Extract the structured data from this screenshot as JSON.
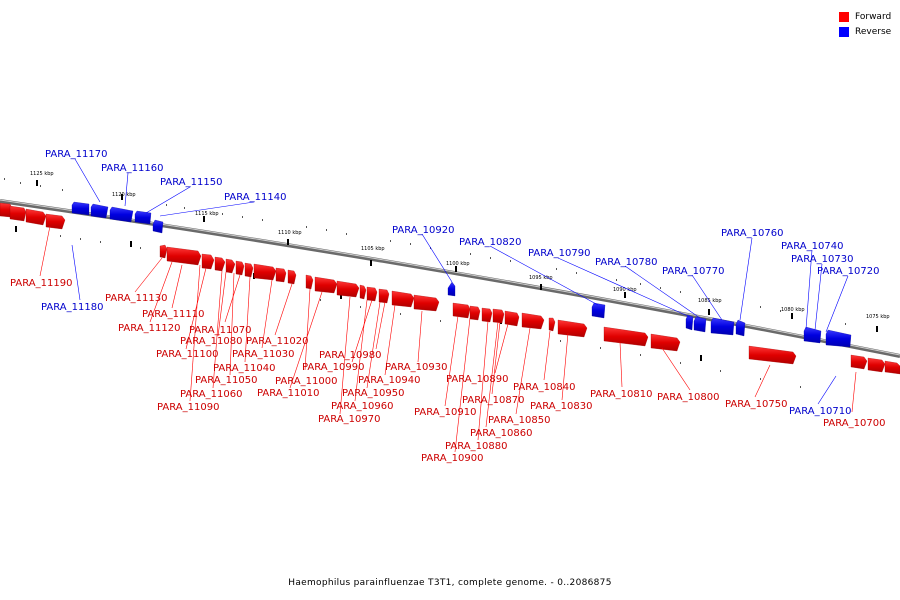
{
  "legend": {
    "forward_label": "Forward",
    "reverse_label": "Reverse",
    "forward_color": "#ff0000",
    "reverse_color": "#0000ff"
  },
  "caption": "Haemophilus parainfluenzae T3T1, complete genome. - 0..2086875",
  "ticks": [
    "1125 kbp",
    "1120 kbp",
    "1115 kbp",
    "1110 kbp",
    "1105 kbp",
    "1100 kbp",
    "1095 kbp",
    "1090 kbp",
    "1085 kbp",
    "1080 kbp",
    "1075 kbp"
  ],
  "genes_forward": [
    "PARA_11190",
    "PARA_11130",
    "PARA_11110",
    "PARA_11120",
    "PARA_11070",
    "PARA_11080",
    "PARA_11100",
    "PARA_11020",
    "PARA_11030",
    "PARA_11040",
    "PARA_11050",
    "PARA_11060",
    "PARA_11090",
    "PARA_11000",
    "PARA_11010",
    "PARA_10980",
    "PARA_10990",
    "PARA_10940",
    "PARA_10950",
    "PARA_10960",
    "PARA_10970",
    "PARA_10930",
    "PARA_10890",
    "PARA_10910",
    "PARA_10870",
    "PARA_10880",
    "PARA_10900",
    "PARA_10860",
    "PARA_10850",
    "PARA_10840",
    "PARA_10830",
    "PARA_10810",
    "PARA_10800",
    "PARA_10750",
    "PARA_10700"
  ],
  "genes_reverse": [
    "PARA_11170",
    "PARA_11160",
    "PARA_11150",
    "PARA_11140",
    "PARA_11180",
    "PARA_10920",
    "PARA_10820",
    "PARA_10790",
    "PARA_10780",
    "PARA_10770",
    "PARA_10760",
    "PARA_10740",
    "PARA_10730",
    "PARA_10720",
    "PARA_10710"
  ]
}
